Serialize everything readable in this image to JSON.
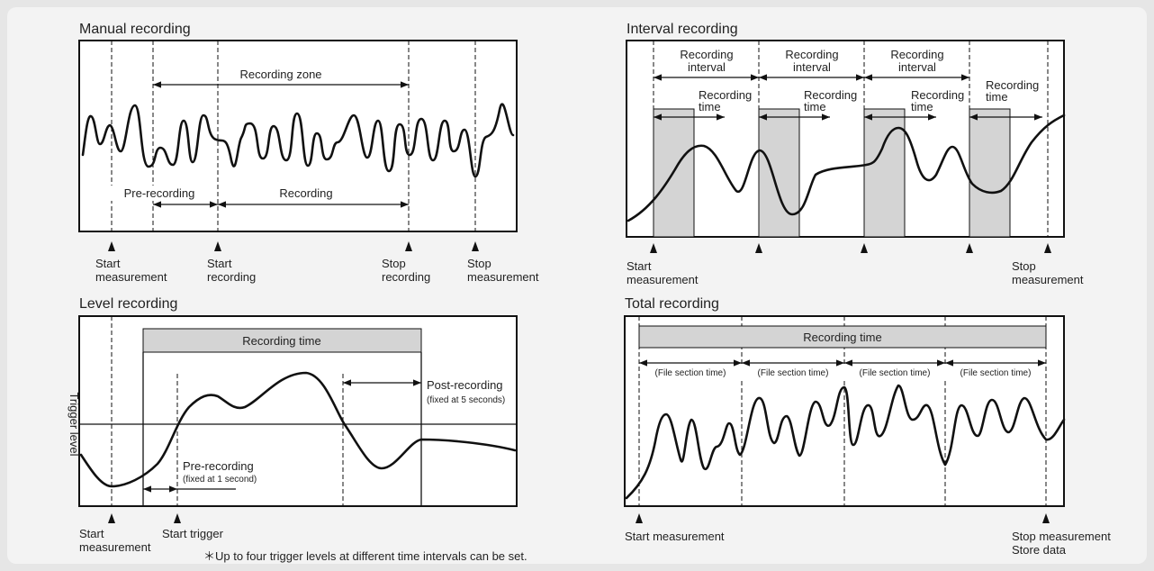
{
  "panels": {
    "manual": {
      "title": "Manual recording",
      "zone": "Recording zone",
      "pre": "Pre-recording",
      "rec": "Recording",
      "m1a": "Start",
      "m1b": "measurement",
      "m2a": "Start",
      "m2b": "recording",
      "m3a": "Stop",
      "m3b": "recording",
      "m4a": "Stop",
      "m4b": "measurement"
    },
    "interval": {
      "title": "Interval recording",
      "ri_a": "Recording",
      "ri_b": "interval",
      "rt_a": "Recording",
      "rt_b": "time",
      "start_a": "Start",
      "start_b": "measurement",
      "stop_a": "Stop",
      "stop_b": "measurement"
    },
    "level": {
      "title": "Level recording",
      "rec_time": "Recording time",
      "post": "Post-recording",
      "post_note": "(fixed at 5 seconds)",
      "trig_level": "Trigger level",
      "pre": "Pre-recording",
      "pre_note": "(fixed at 1 second)",
      "start_a": "Start",
      "start_b": "measurement",
      "start_trigger": "Start trigger",
      "footnote": "＊Up to four trigger levels at different time intervals can be set."
    },
    "total": {
      "title": "Total recording",
      "rec_time": "Recording time",
      "file_section": "(File section time)",
      "start": "Start measurement",
      "stop_a": "Stop measurement",
      "stop_b": "Store data"
    }
  }
}
